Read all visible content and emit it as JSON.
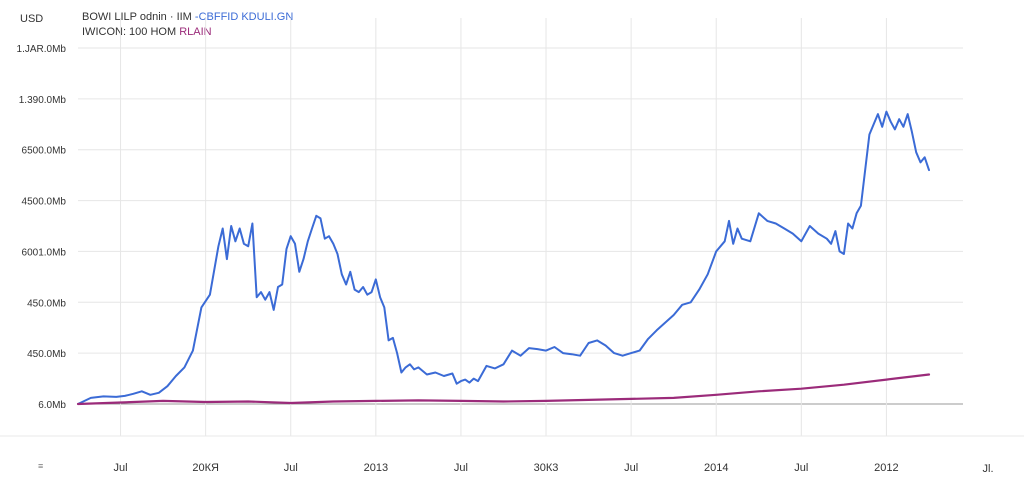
{
  "header": {
    "unit": "USD",
    "legend_line1_a": "BOWI LILP  odnin · IIM",
    "legend_line1_b": "-CBFFID  KDULI.GN",
    "legend_line2_a": "IWICON: 100 HOM",
    "legend_line2_b": "RLAIN"
  },
  "footer": {
    "left_mark": "≡",
    "right_mark": "Jl."
  },
  "colors": {
    "series_primary": "#3b6bd6",
    "series_secondary": "#9b2b7a",
    "grid": "#e6e6e6",
    "baseline": "#999999"
  },
  "chart_data": {
    "type": "line",
    "title": "",
    "xlabel": "",
    "ylabel": "",
    "ytick_labels": [
      "6.0Mb",
      "450.0Mb",
      "450.0Mb",
      "6001.0Mb",
      "4500.0Mb",
      "6500.0Mb",
      "1.390.0Mb",
      "1.JAR.0Mb"
    ],
    "xtick_labels": [
      "Jul",
      "20КЯ",
      "Jul",
      "2013",
      "Jul",
      "30К3",
      "Jul",
      "2014",
      "Jul",
      "2012"
    ],
    "ylim": [
      0,
      7
    ],
    "xlim": [
      0,
      10.4
    ],
    "grid": true,
    "series": [
      {
        "x": [
          0,
          0.15,
          0.3,
          0.45,
          0.55,
          0.65,
          0.75,
          0.85,
          0.95,
          1.05,
          1.15,
          1.25,
          1.35,
          1.45,
          1.55,
          1.65,
          1.7,
          1.75,
          1.8,
          1.85,
          1.9,
          1.95,
          2.0,
          2.05,
          2.1,
          2.15,
          2.2,
          2.25,
          2.3,
          2.35,
          2.4,
          2.45,
          2.5,
          2.55,
          2.6,
          2.65,
          2.7,
          2.75,
          2.8,
          2.85,
          2.9,
          2.95,
          3.0,
          3.05,
          3.1,
          3.15,
          3.2,
          3.25,
          3.3,
          3.35,
          3.4,
          3.45,
          3.5,
          3.55,
          3.6,
          3.65,
          3.7,
          3.75,
          3.8,
          3.85,
          3.9,
          3.95,
          4.0,
          4.1,
          4.2,
          4.3,
          4.4,
          4.45,
          4.5,
          4.55,
          4.6,
          4.65,
          4.7,
          4.8,
          4.9,
          5.0,
          5.1,
          5.2,
          5.3,
          5.4,
          5.5,
          5.6,
          5.7,
          5.8,
          5.9,
          6.0,
          6.1,
          6.2,
          6.3,
          6.4,
          6.5,
          6.6,
          6.7,
          6.8,
          6.9,
          7.0,
          7.1,
          7.2,
          7.3,
          7.4,
          7.5,
          7.6,
          7.65,
          7.7,
          7.75,
          7.8,
          7.9,
          8.0,
          8.1,
          8.2,
          8.3,
          8.4,
          8.5,
          8.6,
          8.7,
          8.8,
          8.85,
          8.9,
          8.95,
          9.0,
          9.05,
          9.1,
          9.15,
          9.2,
          9.3,
          9.4,
          9.45,
          9.5,
          9.55,
          9.6,
          9.65,
          9.7,
          9.75,
          9.8,
          9.85,
          9.9,
          9.95,
          10.0
        ],
        "values": [
          0.0,
          0.12,
          0.15,
          0.14,
          0.16,
          0.2,
          0.25,
          0.18,
          0.22,
          0.35,
          0.55,
          0.72,
          1.05,
          1.9,
          2.15,
          3.1,
          3.45,
          2.85,
          3.5,
          3.2,
          3.45,
          3.15,
          3.1,
          3.55,
          2.1,
          2.2,
          2.05,
          2.2,
          1.85,
          2.3,
          2.35,
          3.05,
          3.3,
          3.15,
          2.6,
          2.85,
          3.2,
          3.45,
          3.7,
          3.65,
          3.25,
          3.3,
          3.15,
          2.95,
          2.55,
          2.35,
          2.6,
          2.25,
          2.2,
          2.3,
          2.15,
          2.2,
          2.45,
          2.1,
          1.9,
          1.25,
          1.3,
          1.0,
          0.62,
          0.72,
          0.78,
          0.68,
          0.72,
          0.58,
          0.62,
          0.55,
          0.6,
          0.4,
          0.45,
          0.48,
          0.42,
          0.5,
          0.45,
          0.75,
          0.7,
          0.78,
          1.05,
          0.95,
          1.1,
          1.08,
          1.05,
          1.12,
          1.0,
          0.98,
          0.95,
          1.2,
          1.25,
          1.15,
          1.0,
          0.95,
          1.0,
          1.05,
          1.28,
          1.45,
          1.6,
          1.75,
          1.95,
          2.0,
          2.25,
          2.55,
          3.0,
          3.2,
          3.6,
          3.15,
          3.45,
          3.25,
          3.2,
          3.75,
          3.6,
          3.55,
          3.45,
          3.35,
          3.2,
          3.5,
          3.35,
          3.25,
          3.15,
          3.4,
          3.0,
          2.95,
          3.55,
          3.45,
          3.75,
          3.9,
          5.3,
          5.7,
          5.45,
          5.75,
          5.55,
          5.4,
          5.6,
          5.45,
          5.7,
          5.35,
          4.95,
          4.75,
          4.85,
          4.6
        ]
      },
      {
        "x": [
          0,
          0.5,
          1.0,
          1.5,
          2.0,
          2.5,
          3.0,
          3.5,
          4.0,
          4.5,
          5.0,
          5.5,
          6.0,
          6.5,
          7.0,
          7.5,
          8.0,
          8.5,
          9.0,
          9.5,
          10.0
        ],
        "values": [
          0.0,
          0.03,
          0.06,
          0.04,
          0.05,
          0.02,
          0.05,
          0.06,
          0.07,
          0.06,
          0.05,
          0.06,
          0.08,
          0.1,
          0.12,
          0.18,
          0.25,
          0.3,
          0.38,
          0.48,
          0.58
        ]
      }
    ]
  }
}
